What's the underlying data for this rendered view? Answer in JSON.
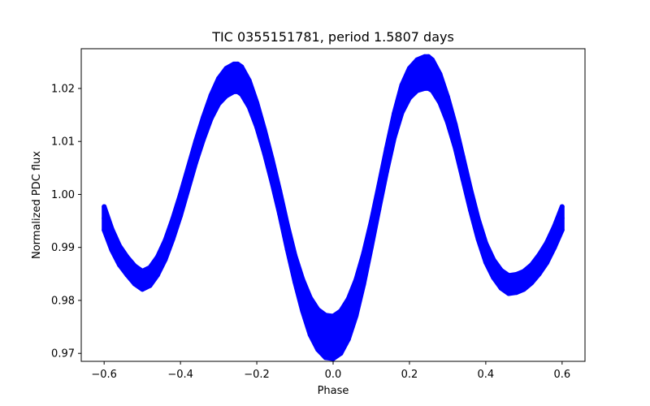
{
  "chart_data": {
    "type": "scatter",
    "title": "TIC 0355151781, period 1.5807 days",
    "xlabel": "Phase",
    "ylabel": "Normalized PDC flux",
    "xlim": [
      -0.66,
      0.66
    ],
    "ylim": [
      0.9685,
      1.0275
    ],
    "grid": false,
    "legend": "none",
    "x_ticks": [
      -0.6,
      -0.4,
      -0.2,
      0.0,
      0.2,
      0.4,
      0.6
    ],
    "x_tick_labels": [
      "−0.6",
      "−0.4",
      "−0.2",
      "0.0",
      "0.2",
      "0.4",
      "0.6"
    ],
    "y_ticks": [
      0.97,
      0.98,
      0.99,
      1.0,
      1.01,
      1.02
    ],
    "y_tick_labels": [
      "0.97",
      "0.98",
      "0.99",
      "1.00",
      "1.01",
      "1.02"
    ],
    "series": [
      {
        "color": "#0000ff",
        "x": [
          -0.6,
          -0.58,
          -0.56,
          -0.54,
          -0.52,
          -0.5,
          -0.48,
          -0.46,
          -0.44,
          -0.42,
          -0.4,
          -0.38,
          -0.36,
          -0.34,
          -0.32,
          -0.3,
          -0.28,
          -0.26,
          -0.25,
          -0.24,
          -0.22,
          -0.2,
          -0.18,
          -0.16,
          -0.14,
          -0.12,
          -0.1,
          -0.08,
          -0.06,
          -0.04,
          -0.02,
          0.0,
          0.02,
          0.04,
          0.06,
          0.08,
          0.1,
          0.12,
          0.14,
          0.16,
          0.18,
          0.2,
          0.22,
          0.24,
          0.25,
          0.26,
          0.28,
          0.3,
          0.32,
          0.34,
          0.36,
          0.38,
          0.4,
          0.42,
          0.44,
          0.46,
          0.48,
          0.5,
          0.52,
          0.54,
          0.56,
          0.58,
          0.6
        ],
        "y": [
          0.9955,
          0.9915,
          0.9885,
          0.9865,
          0.9848,
          0.9838,
          0.9845,
          0.9865,
          0.9895,
          0.9935,
          0.998,
          1.003,
          1.008,
          1.0125,
          1.0165,
          1.0195,
          1.0212,
          1.022,
          1.022,
          1.0215,
          1.019,
          1.015,
          1.01,
          1.0045,
          0.9985,
          0.992,
          0.986,
          0.981,
          0.977,
          0.9745,
          0.9732,
          0.973,
          0.974,
          0.9765,
          0.9805,
          0.986,
          0.9925,
          0.9995,
          1.0065,
          1.013,
          1.018,
          1.021,
          1.0225,
          1.023,
          1.023,
          1.0225,
          1.02,
          1.016,
          1.011,
          1.005,
          0.999,
          0.9935,
          0.989,
          0.986,
          0.984,
          0.983,
          0.9832,
          0.9838,
          0.985,
          0.9868,
          0.989,
          0.992,
          0.9955
        ],
        "band_halfwidth": [
          0.0022,
          0.002,
          0.0018,
          0.0017,
          0.0017,
          0.0017,
          0.0017,
          0.0017,
          0.0018,
          0.0019,
          0.002,
          0.002,
          0.002,
          0.0021,
          0.0022,
          0.0024,
          0.0026,
          0.0026,
          0.0026,
          0.0026,
          0.0025,
          0.0023,
          0.0022,
          0.0022,
          0.0022,
          0.0023,
          0.0025,
          0.003,
          0.0035,
          0.0038,
          0.004,
          0.004,
          0.004,
          0.0038,
          0.0034,
          0.0029,
          0.0024,
          0.0022,
          0.0022,
          0.0023,
          0.0026,
          0.0028,
          0.0029,
          0.003,
          0.003,
          0.0029,
          0.0027,
          0.0024,
          0.0022,
          0.0021,
          0.002,
          0.0019,
          0.0018,
          0.0017,
          0.0017,
          0.0017,
          0.0017,
          0.0017,
          0.0017,
          0.0018,
          0.0019,
          0.002,
          0.0022
        ]
      }
    ]
  }
}
